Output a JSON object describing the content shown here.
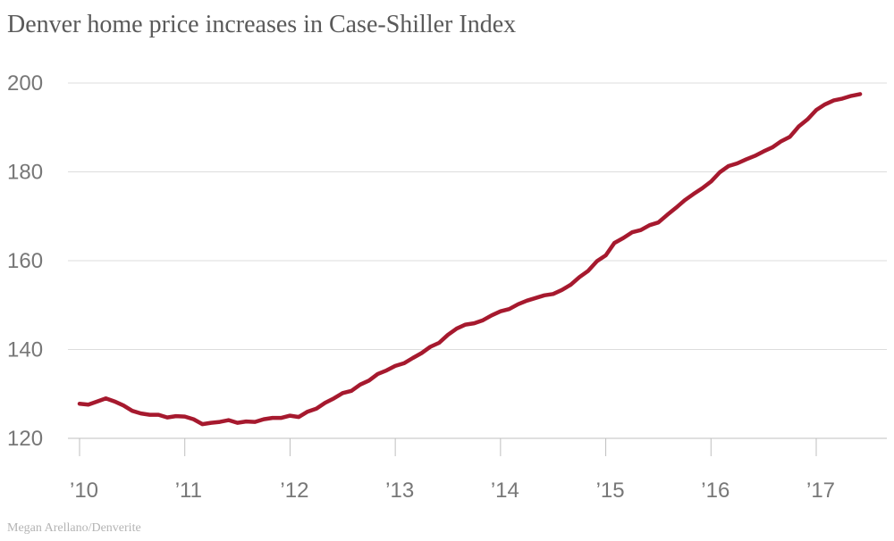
{
  "source": "Megan Arellano/Denverite",
  "chart_data": {
    "type": "line",
    "title": "Denver home price increases in Case-Shiller Index",
    "xlabel": "",
    "ylabel": "",
    "ylim": [
      120,
      200
    ],
    "yticks": [
      "120",
      "140",
      "160",
      "180",
      "200"
    ],
    "xticks": [
      "’10",
      "’11",
      "’12",
      "’13",
      "’14",
      "’15",
      "’16",
      "’17"
    ],
    "xlim": [
      2010,
      2017.5
    ],
    "grid": true,
    "line_color": "#a6192e",
    "series": [
      {
        "name": "Denver Case-Shiller Index",
        "x": [
          2010.0,
          2010.083,
          2010.167,
          2010.25,
          2010.333,
          2010.417,
          2010.5,
          2010.583,
          2010.667,
          2010.75,
          2010.833,
          2010.917,
          2011.0,
          2011.083,
          2011.167,
          2011.25,
          2011.333,
          2011.417,
          2011.5,
          2011.583,
          2011.667,
          2011.75,
          2011.833,
          2011.917,
          2012.0,
          2012.083,
          2012.167,
          2012.25,
          2012.333,
          2012.417,
          2012.5,
          2012.583,
          2012.667,
          2012.75,
          2012.833,
          2012.917,
          2013.0,
          2013.083,
          2013.167,
          2013.25,
          2013.333,
          2013.417,
          2013.5,
          2013.583,
          2013.667,
          2013.75,
          2013.833,
          2013.917,
          2014.0,
          2014.083,
          2014.167,
          2014.25,
          2014.333,
          2014.417,
          2014.5,
          2014.583,
          2014.667,
          2014.75,
          2014.833,
          2014.917,
          2015.0,
          2015.083,
          2015.167,
          2015.25,
          2015.333,
          2015.417,
          2015.5,
          2015.583,
          2015.667,
          2015.75,
          2015.833,
          2015.917,
          2016.0,
          2016.083,
          2016.167,
          2016.25,
          2016.333,
          2016.417,
          2016.5,
          2016.583,
          2016.667,
          2016.75,
          2016.833,
          2016.917,
          2017.0,
          2017.083,
          2017.167,
          2017.25,
          2017.333,
          2017.417
        ],
        "values": [
          127.8,
          127.6,
          128.3,
          129.0,
          128.3,
          127.4,
          126.2,
          125.6,
          125.3,
          125.3,
          124.7,
          125.0,
          124.9,
          124.3,
          123.2,
          123.5,
          123.7,
          124.1,
          123.5,
          123.8,
          123.7,
          124.3,
          124.6,
          124.6,
          125.1,
          124.8,
          126.0,
          126.7,
          128.0,
          129.0,
          130.2,
          130.7,
          132.1,
          133.0,
          134.5,
          135.3,
          136.3,
          136.9,
          138.1,
          139.2,
          140.6,
          141.5,
          143.3,
          144.7,
          145.6,
          145.9,
          146.6,
          147.7,
          148.6,
          149.1,
          150.2,
          151.0,
          151.6,
          152.2,
          152.5,
          153.4,
          154.6,
          156.3,
          157.7,
          159.9,
          161.2,
          164.0,
          165.1,
          166.4,
          166.9,
          168.0,
          168.6,
          170.3,
          171.9,
          173.6,
          175.0,
          176.3,
          177.8,
          179.9,
          181.3,
          181.9,
          182.8,
          183.6,
          184.6,
          185.5,
          186.9,
          187.9,
          190.2,
          191.8,
          193.9,
          195.2,
          196.1,
          196.5,
          197.1,
          197.5
        ]
      }
    ]
  }
}
